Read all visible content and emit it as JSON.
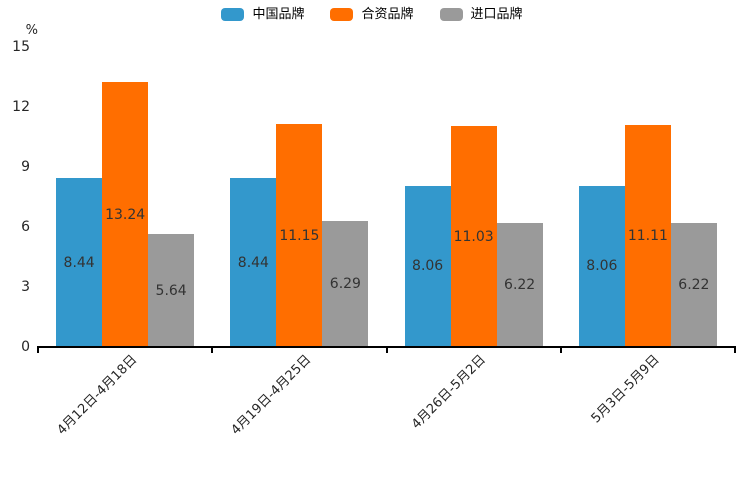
{
  "chart_data": {
    "type": "bar",
    "title": "",
    "xlabel": "",
    "ylabel": "%",
    "ylim": [
      0,
      15
    ],
    "yticks": [
      0,
      3,
      6,
      9,
      12,
      15
    ],
    "grid": false,
    "legend_position": "top",
    "value_label_position": "inside-center",
    "value_label_color": "#333333",
    "axis_color": "#000000",
    "tick_text_color": "#262626",
    "categories": [
      "4月12日-4月18日",
      "4月19日-4月25日",
      "4月26日-5月2日",
      "5月3日-5月9日"
    ],
    "series": [
      {
        "name": "中国品牌",
        "color": "#3398cc",
        "values": [
          8.44,
          8.44,
          8.06,
          8.06
        ]
      },
      {
        "name": "合资品牌",
        "color": "#ff6e00",
        "values": [
          13.24,
          11.15,
          11.03,
          11.11
        ]
      },
      {
        "name": "进口品牌",
        "color": "#9a9a9a",
        "values": [
          5.64,
          6.29,
          6.22,
          6.22
        ]
      }
    ]
  }
}
